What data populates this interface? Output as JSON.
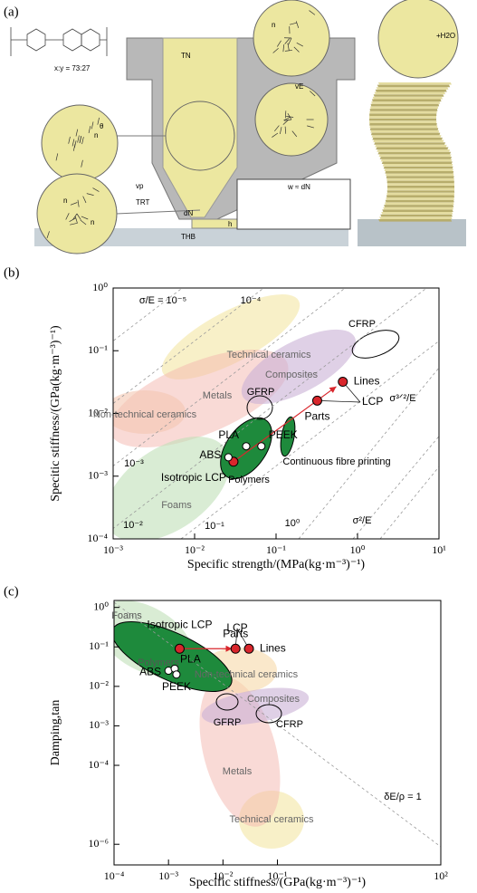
{
  "panel_labels": [
    "(a)",
    "(b)",
    "(c)"
  ],
  "diagram": {
    "texts": [
      "x:y = 73:27",
      "TN",
      "vp",
      "TRT",
      "THB",
      "dN",
      "h",
      "w ≈ dN",
      "vE",
      "+H2O",
      "n",
      "θ"
    ]
  },
  "chart_data": [
    {
      "type": "scatter",
      "log_x": true,
      "log_y": true,
      "xlabel": "Specific strength/(MPa(kg·m⁻³)⁻¹)",
      "ylabel": "Specitic stiffness/(GPa(kg·m⁻³)⁻¹)",
      "xlim": [
        0.001,
        10
      ],
      "ylim": [
        0.0001,
        1
      ],
      "xticks": [
        {
          "value": 0.001,
          "label": "10⁻³"
        },
        {
          "value": 0.01,
          "label": "10⁻²"
        },
        {
          "value": 0.1,
          "label": "10⁻¹"
        },
        {
          "value": 1,
          "label": "10⁰"
        },
        {
          "value": 10,
          "label": "10¹"
        }
      ],
      "yticks": [
        {
          "value": 0.0001,
          "label": "10⁻⁴"
        },
        {
          "value": 0.001,
          "label": "10⁻³"
        },
        {
          "value": 0.01,
          "label": "10⁻²"
        },
        {
          "value": 0.1,
          "label": "10⁻¹"
        },
        {
          "value": 1,
          "label": "10⁰"
        }
      ],
      "series": [
        {
          "name": "LCP",
          "color": "#d9262c",
          "marker": "filled",
          "labels": [
            "Isotropic LCP",
            "Parts",
            "Lines"
          ],
          "x": [
            0.03,
            0.32,
            0.66
          ],
          "values": [
            0.0017,
            0.016,
            0.032
          ]
        },
        {
          "color": "#ffffff",
          "marker": "open",
          "labels": [
            "ABS",
            "PLA",
            "PEEK"
          ],
          "x": [
            0.026,
            0.043,
            0.066
          ],
          "values": [
            0.002,
            0.003,
            0.003
          ]
        }
      ],
      "annotations": [
        "σ/E = 10⁻⁵",
        "10⁻⁴",
        "10⁻³",
        "10⁻²",
        "10⁻¹",
        "10⁰",
        "σ³ᐟ²/E",
        "σ²/E",
        "Technical ceramics",
        "Composites",
        "Metals",
        "Non-technical ceramics",
        "GFRP",
        "CFRP",
        "Foams",
        "Polymers",
        "Continuous fibre printing"
      ]
    },
    {
      "type": "scatter",
      "log_x": true,
      "log_y": true,
      "xlabel": "Specific stiffness/(GPa(kg·m⁻³)⁻¹)",
      "ylabel": "Damping,tan",
      "xlim": [
        0.0001,
        100
      ],
      "ylim": [
        3e-07,
        1.5
      ],
      "xticks": [
        {
          "value": 0.0001,
          "label": "10⁻⁴"
        },
        {
          "value": 0.001,
          "label": "10⁻³"
        },
        {
          "value": 0.01,
          "label": "10⁻²"
        },
        {
          "value": 0.1,
          "label": "10⁻¹"
        },
        {
          "value": 100,
          "label": "10²"
        }
      ],
      "yticks": [
        {
          "value": 1,
          "label": "10⁰"
        },
        {
          "value": 0.1,
          "label": "10⁻¹"
        },
        {
          "value": 0.01,
          "label": "10⁻²"
        },
        {
          "value": 0.001,
          "label": "10⁻³"
        },
        {
          "value": 0.0001,
          "label": "10⁻⁴"
        },
        {
          "value": 1e-06,
          "label": "10⁻⁶"
        }
      ],
      "series": [
        {
          "name": "LCP",
          "color": "#d9262c",
          "marker": "filled",
          "labels": [
            "Isotropic LCP",
            "Parts",
            "Lines"
          ],
          "x": [
            0.0016,
            0.017,
            0.03
          ],
          "values": [
            0.09,
            0.09,
            0.09
          ]
        },
        {
          "color": "#ffffff",
          "marker": "open",
          "labels": [
            "ABS",
            "PLA",
            "PEEK"
          ],
          "x": [
            0.001,
            0.0013,
            0.0014
          ],
          "values": [
            0.025,
            0.028,
            0.02
          ]
        }
      ],
      "annotations": [
        "Foams",
        "Polymers",
        "Non-technical ceramics",
        "Composites",
        "GFRP",
        "CFRP",
        "Metals",
        "Technical ceramics",
        "δE/ρ = 1"
      ]
    }
  ]
}
